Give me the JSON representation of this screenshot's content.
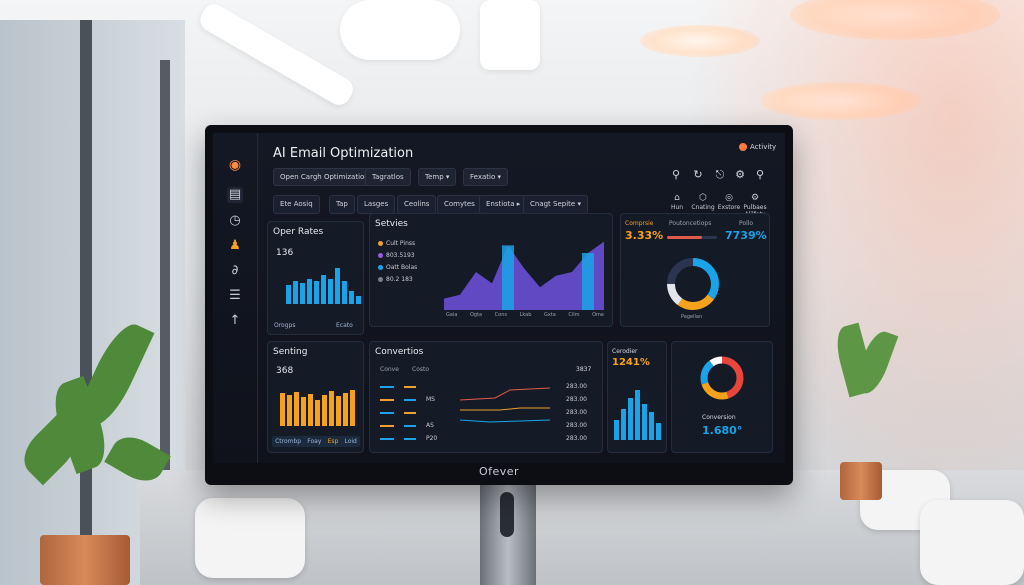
{
  "app": {
    "title": "AI Email Optimization",
    "activity": "Activity",
    "brand": "Ofever"
  },
  "toolbar": {
    "buttons": [
      "Open Cargh Optimization",
      "Tagratlos",
      "Temp ▾",
      "Fexatio ▾"
    ]
  },
  "tabs": [
    "Ete Aosiq",
    "Tap",
    "Lasges",
    "Ceolins",
    "Comytes",
    "Enstiota ▸",
    "Cnagt Sepite ▾"
  ],
  "right_icons": [
    {
      "glyph": "⌂",
      "label": "Hun"
    },
    {
      "glyph": "⬡",
      "label": "Cnating"
    },
    {
      "glyph": "◎",
      "label": "Exstore"
    },
    {
      "glyph": "⚙",
      "label": "Pulbaes Alilfaty"
    }
  ],
  "open_rates": {
    "title": "Oper Rates",
    "value": "136",
    "footer_left": "Orogps",
    "footer_right": "Ecato",
    "bar_color": "#1aa3e8",
    "bars": [
      0.45,
      0.55,
      0.5,
      0.6,
      0.55,
      0.7,
      0.6,
      0.85,
      0.55,
      0.3,
      0.2
    ]
  },
  "senting": {
    "title": "Senting",
    "value": "368",
    "bar_color": "#f7a21b",
    "bars": [
      0.75,
      0.7,
      0.78,
      0.65,
      0.72,
      0.6,
      0.7,
      0.8,
      0.68,
      0.74,
      0.82
    ],
    "footer": [
      "Ctrombp",
      "Foay",
      "Esp",
      "Loid"
    ]
  },
  "services": {
    "title": "Setvies",
    "legend": [
      {
        "label": "Cult Pinss",
        "color": "#f0a030"
      },
      {
        "label": "803.5193",
        "color": "#9b59e6"
      },
      {
        "label": "Oatt Bolas",
        "color": "#1aa3e8"
      },
      {
        "label": "80.2 183",
        "color": "#7a7f8a"
      }
    ],
    "axis": [
      "Gaia",
      "Ogta",
      "Cons",
      "Lkab",
      "Gxta",
      "Cilm",
      "Ome"
    ],
    "primary_color": "#6a4fd6",
    "accent_color": "#1aa3e8",
    "series": [
      0.15,
      0.2,
      0.5,
      0.35,
      0.85,
      0.55,
      0.3,
      0.45,
      0.5,
      0.75,
      0.9
    ]
  },
  "conversions": {
    "title": "Convertios",
    "col_a": "Conve",
    "col_b": "Costo",
    "col_total": "3837",
    "rows": [
      {
        "b": "",
        "v": "283.00"
      },
      {
        "b": "MS",
        "v": "283.00"
      },
      {
        "b": "",
        "v": "283.00"
      },
      {
        "b": "AS",
        "v": "283.00"
      },
      {
        "b": "P20",
        "v": "283.00"
      }
    ],
    "line_colors": [
      "#e05a4a",
      "#f0a030",
      "#1aa3e8"
    ]
  },
  "campaigns": {
    "title": "Comprsie",
    "value": "3.33%",
    "progress_label": "Poutoncetiops",
    "progress": 0.7,
    "follow_label": "Pollo",
    "follow_value": "7739%",
    "donut": {
      "segments": [
        {
          "value": 0.35,
          "color": "#1aa3e8"
        },
        {
          "value": 0.25,
          "color": "#f7a21b"
        },
        {
          "value": 0.15,
          "color": "#e0e5ee"
        },
        {
          "value": 0.25,
          "color": "#2b3550"
        }
      ]
    },
    "donut_label": "Pagellan"
  },
  "certifier": {
    "title": "Cerodier",
    "value": "1241%",
    "bar_color": "#1aa3e8",
    "bars": [
      0.35,
      0.55,
      0.75,
      0.9,
      0.65,
      0.5,
      0.3
    ]
  },
  "conversion_donut": {
    "label": "Conversion",
    "value": "1.680°",
    "segments": [
      {
        "value": 0.45,
        "color": "#e8453c"
      },
      {
        "value": 0.25,
        "color": "#f7a21b"
      },
      {
        "value": 0.2,
        "color": "#1aa3e8"
      },
      {
        "value": 0.1,
        "color": "#ffffff"
      }
    ]
  }
}
